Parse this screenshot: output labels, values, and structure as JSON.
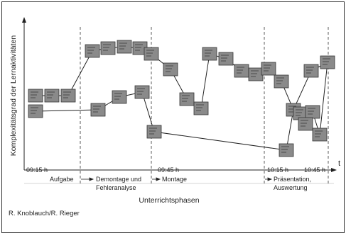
{
  "y_axis_label": "Komplexitätsgrad der Lernaktivitäten",
  "x_axis_symbol": "t",
  "times": [
    "09:15 h",
    "09:45 h",
    "10:15 h",
    "10:45 h"
  ],
  "phases": [
    {
      "lines": [
        "Aufgabe"
      ]
    },
    {
      "lines": [
        "Demontage und",
        "Fehleranalyse"
      ]
    },
    {
      "lines": [
        "Montage"
      ]
    },
    {
      "lines": [
        "Präsentation,",
        "Auswertung"
      ]
    }
  ],
  "x_axis_label": "Unterrichtsphasen",
  "credit": "R. Knoblauch/R. Rieger"
}
